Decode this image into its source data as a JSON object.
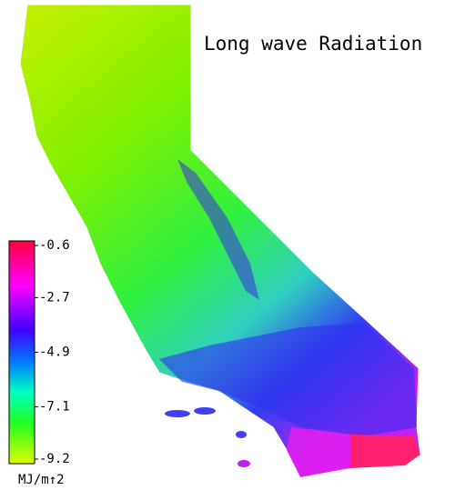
{
  "title": "Long wave Radiation",
  "colorbar": {
    "ticks": [
      -0.6,
      -2.7,
      -4.9,
      -7.1,
      -9.2
    ],
    "unit": "MJ/m↑2"
  }
}
